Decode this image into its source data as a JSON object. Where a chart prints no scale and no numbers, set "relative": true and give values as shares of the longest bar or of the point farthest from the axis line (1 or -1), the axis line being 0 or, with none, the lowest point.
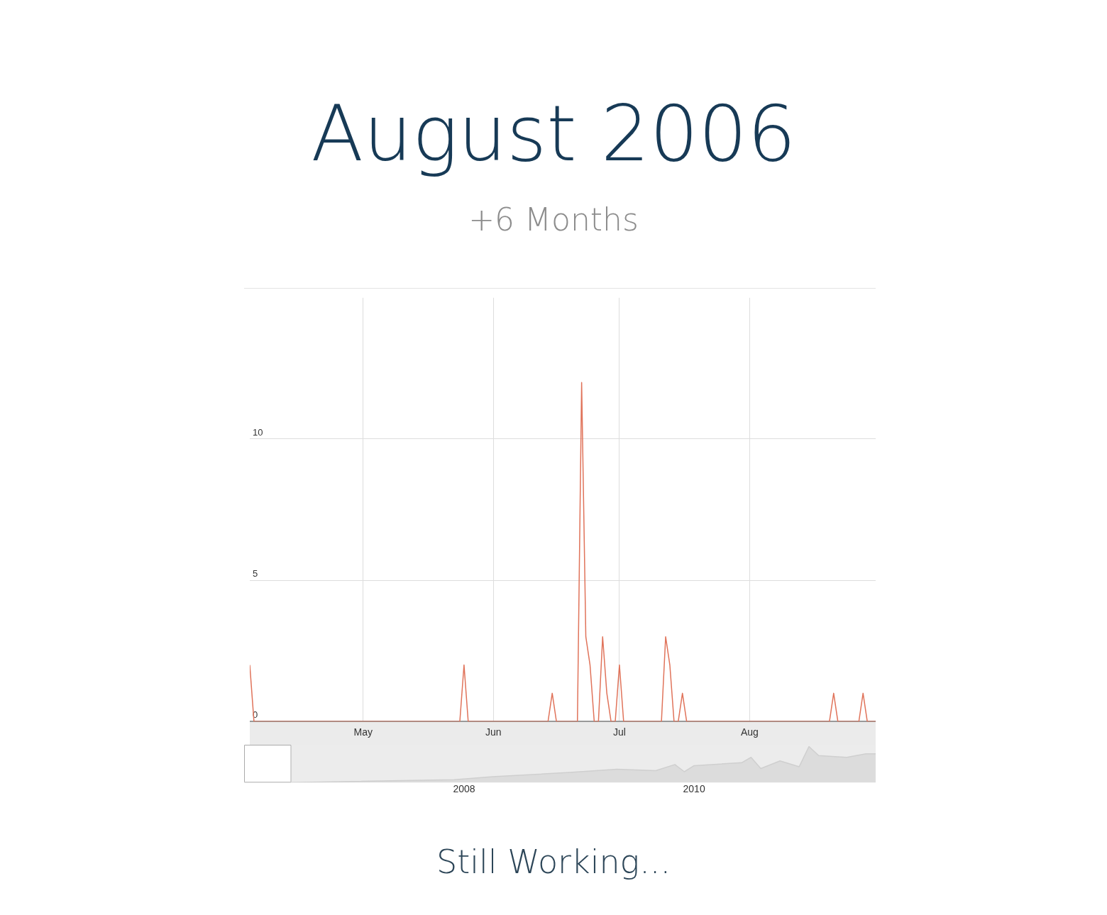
{
  "chart_data": [
    {
      "type": "line",
      "title": "August 2006",
      "subtitle": "+6 Months",
      "annotations": [
        "Still Working..."
      ],
      "x": [
        "2006-04-04",
        "2006-04-05",
        "2006-05-24",
        "2006-05-25",
        "2006-05-26",
        "2006-06-14",
        "2006-06-15",
        "2006-06-16",
        "2006-06-21",
        "2006-06-22",
        "2006-06-23",
        "2006-06-24",
        "2006-06-25",
        "2006-06-26",
        "2006-06-27",
        "2006-06-28",
        "2006-06-29",
        "2006-06-30",
        "2006-07-01",
        "2006-07-02",
        "2006-07-11",
        "2006-07-12",
        "2006-07-13",
        "2006-07-14",
        "2006-07-15",
        "2006-07-16",
        "2006-07-17",
        "2006-08-20",
        "2006-08-21",
        "2006-08-22",
        "2006-08-27",
        "2006-08-28",
        "2006-08-29",
        "2006-08-31"
      ],
      "series": [
        {
          "color": "#e0735a",
          "values": [
            2,
            0,
            0,
            2,
            0,
            0,
            1,
            0,
            0,
            12,
            3,
            2,
            0,
            0,
            3,
            1,
            0,
            0,
            2,
            0,
            0,
            3,
            2,
            0,
            0,
            1,
            0,
            0,
            1,
            0,
            0,
            1,
            0,
            0
          ]
        }
      ],
      "xlim": [
        "2006-04-04",
        "2006-08-31"
      ],
      "xticks": [
        {
          "value": "2006-05-01",
          "label": "May"
        },
        {
          "value": "2006-06-01",
          "label": "Jun"
        },
        {
          "value": "2006-07-01",
          "label": "Jul"
        },
        {
          "value": "2006-08-01",
          "label": "Aug"
        }
      ],
      "ylim": [
        0,
        15
      ],
      "yticks": [
        0,
        5,
        10
      ],
      "grid": true
    },
    {
      "type": "area",
      "relative": true,
      "x": [
        "2006-02",
        "2006-07",
        "2007-12",
        "2008-04",
        "2008-12",
        "2009-05",
        "2009-09",
        "2009-11",
        "2009-12",
        "2010-01",
        "2010-06",
        "2010-07",
        "2010-08",
        "2010-10",
        "2010-12",
        "2011-01",
        "2011-02",
        "2011-05",
        "2011-07",
        "2011-08"
      ],
      "series": [
        {
          "color": "#cfcfcf",
          "values": [
            0,
            0,
            0.08,
            0.16,
            0.28,
            0.37,
            0.33,
            0.5,
            0.3,
            0.47,
            0.55,
            0.7,
            0.39,
            0.6,
            0.44,
            1,
            0.75,
            0.7,
            0.8,
            0.8
          ]
        }
      ],
      "xlim": [
        "2006-02",
        "2011-08"
      ],
      "bands": [
        {
          "axis": "x",
          "from": "2006-02",
          "to": "2006-07",
          "color": "#ffffff"
        }
      ],
      "xticks": [
        {
          "value": "2008-01",
          "label": "2008"
        },
        {
          "value": "2010-01",
          "label": "2010"
        }
      ]
    }
  ]
}
